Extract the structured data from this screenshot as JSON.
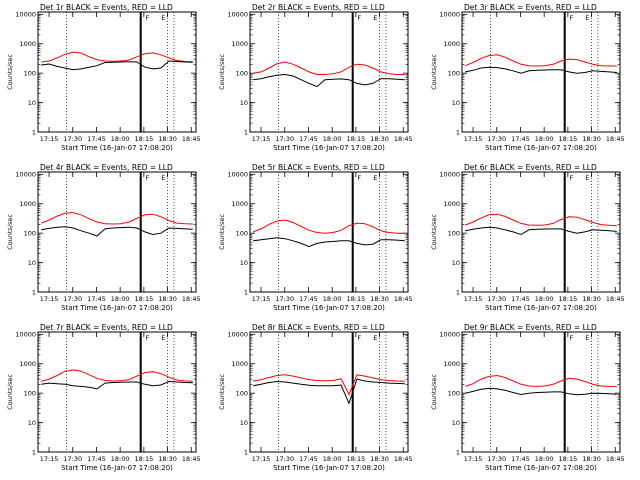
{
  "colors": {
    "events": "#000000",
    "lld": "#ff0000",
    "background": "#ffffff"
  },
  "chart_data": [
    {
      "type": "line",
      "title": "Det 1r BLACK = Events, RED = LLD",
      "xlabel": "Start Time (16-Jan-07 17:08:20)",
      "ylabel": "Counts/sec",
      "xticks": [
        "17:15",
        "17:30",
        "17:45",
        "18:00",
        "18:15",
        "18:30",
        "18:45"
      ],
      "yticks": [
        "1",
        "10",
        "100",
        "1000",
        "10000"
      ],
      "yscale": "log",
      "ylim": [
        1,
        12000
      ],
      "markers": [
        "F",
        "E"
      ],
      "series": [
        {
          "name": "LLD",
          "color": "#ff0000",
          "values": [
            240,
            260,
            330,
            440,
            520,
            480,
            360,
            290,
            260,
            255,
            260,
            280,
            360,
            460,
            490,
            420,
            330,
            270,
            250,
            245
          ]
        },
        {
          "name": "Events",
          "color": "#000000",
          "values": [
            190,
            205,
            170,
            150,
            130,
            140,
            160,
            180,
            230,
            235,
            240,
            245,
            240,
            160,
            140,
            150,
            260,
            250,
            240,
            235
          ]
        }
      ]
    },
    {
      "type": "line",
      "title": "Det 2r BLACK = Events, RED = LLD",
      "xlabel": "Start Time (16-Jan-07 17:08:20)",
      "ylabel": "Counts/sec",
      "xticks": [
        "17:15",
        "17:30",
        "17:45",
        "18:00",
        "18:15",
        "18:30",
        "18:45"
      ],
      "yticks": [
        "1",
        "10",
        "100",
        "1000",
        "10000"
      ],
      "yscale": "log",
      "ylim": [
        1,
        12000
      ],
      "markers": [
        "F",
        "E"
      ],
      "series": [
        {
          "name": "LLD",
          "color": "#ff0000",
          "values": [
            100,
            110,
            150,
            210,
            240,
            200,
            150,
            110,
            90,
            90,
            95,
            110,
            160,
            200,
            190,
            150,
            110,
            95,
            90,
            90
          ]
        },
        {
          "name": "Events",
          "color": "#000000",
          "values": [
            60,
            65,
            75,
            85,
            90,
            80,
            60,
            45,
            35,
            60,
            62,
            64,
            60,
            45,
            40,
            45,
            65,
            65,
            62,
            60
          ]
        }
      ]
    },
    {
      "type": "line",
      "title": "Det 3r BLACK = Events, RED = LLD",
      "xlabel": "Start Time (16-Jan-07 17:08:20)",
      "ylabel": "Counts/sec",
      "xticks": [
        "17:15",
        "17:30",
        "17:45",
        "18:00",
        "18:15",
        "18:30",
        "18:45"
      ],
      "yticks": [
        "1",
        "10",
        "100",
        "1000",
        "10000"
      ],
      "yscale": "log",
      "ylim": [
        1,
        12000
      ],
      "markers": [
        "F",
        "E"
      ],
      "series": [
        {
          "name": "LLD",
          "color": "#ff0000",
          "values": [
            180,
            230,
            320,
            400,
            420,
            350,
            260,
            200,
            180,
            175,
            180,
            200,
            260,
            300,
            290,
            240,
            200,
            180,
            175,
            175
          ]
        },
        {
          "name": "Events",
          "color": "#000000",
          "values": [
            110,
            125,
            150,
            160,
            155,
            140,
            120,
            100,
            120,
            125,
            128,
            130,
            130,
            110,
            100,
            105,
            120,
            115,
            110,
            105
          ]
        }
      ]
    },
    {
      "type": "line",
      "title": "Det 4r BLACK = Events, RED = LLD",
      "xlabel": "Start Time (16-Jan-07 17:08:20)",
      "ylabel": "Counts/sec",
      "xticks": [
        "17:15",
        "17:30",
        "17:45",
        "18:00",
        "18:15",
        "18:30",
        "18:45"
      ],
      "yticks": [
        "1",
        "10",
        "100",
        "1000",
        "10000"
      ],
      "yscale": "log",
      "ylim": [
        1,
        12000
      ],
      "markers": [
        "F",
        "E"
      ],
      "series": [
        {
          "name": "LLD",
          "color": "#ff0000",
          "values": [
            220,
            280,
            380,
            480,
            500,
            420,
            310,
            240,
            210,
            205,
            210,
            240,
            320,
            420,
            440,
            360,
            270,
            220,
            210,
            205
          ]
        },
        {
          "name": "Events",
          "color": "#000000",
          "values": [
            130,
            145,
            160,
            165,
            150,
            120,
            100,
            80,
            140,
            150,
            155,
            160,
            150,
            110,
            90,
            100,
            150,
            145,
            140,
            135
          ]
        }
      ]
    },
    {
      "type": "line",
      "title": "Det 5r BLACK = Events, RED = LLD",
      "xlabel": "Start Time (16-Jan-07 17:08:20)",
      "ylabel": "Counts/sec",
      "xticks": [
        "17:15",
        "17:30",
        "17:45",
        "18:00",
        "18:15",
        "18:30",
        "18:45"
      ],
      "yticks": [
        "1",
        "10",
        "100",
        "1000",
        "10000"
      ],
      "yscale": "log",
      "ylim": [
        1,
        12000
      ],
      "markers": [
        "F",
        "E"
      ],
      "series": [
        {
          "name": "LLD",
          "color": "#ff0000",
          "values": [
            110,
            140,
            200,
            260,
            280,
            230,
            170,
            125,
            105,
            100,
            105,
            125,
            180,
            220,
            210,
            165,
            120,
            105,
            100,
            100
          ]
        },
        {
          "name": "Events",
          "color": "#000000",
          "values": [
            55,
            60,
            65,
            70,
            65,
            55,
            45,
            35,
            45,
            50,
            52,
            55,
            55,
            45,
            40,
            42,
            60,
            60,
            58,
            55
          ]
        }
      ]
    },
    {
      "type": "line",
      "title": "Det 6r BLACK = Events, RED = LLD",
      "xlabel": "Start Time (16-Jan-07 17:08:20)",
      "ylabel": "Counts/sec",
      "xticks": [
        "17:15",
        "17:30",
        "17:45",
        "18:00",
        "18:15",
        "18:30",
        "18:45"
      ],
      "yticks": [
        "1",
        "10",
        "100",
        "1000",
        "10000"
      ],
      "yscale": "log",
      "ylim": [
        1,
        12000
      ],
      "markers": [
        "F",
        "E"
      ],
      "series": [
        {
          "name": "LLD",
          "color": "#ff0000",
          "values": [
            190,
            240,
            330,
            420,
            440,
            370,
            280,
            215,
            190,
            185,
            190,
            215,
            290,
            360,
            350,
            290,
            230,
            195,
            185,
            180
          ]
        },
        {
          "name": "Events",
          "color": "#000000",
          "values": [
            120,
            135,
            150,
            160,
            150,
            130,
            110,
            90,
            130,
            135,
            138,
            140,
            140,
            115,
            100,
            110,
            130,
            125,
            120,
            115
          ]
        }
      ]
    },
    {
      "type": "line",
      "title": "Det 7r BLACK = Events, RED = LLD",
      "xlabel": "Start Time (16-Jan-07 17:08:20)",
      "ylabel": "Counts/sec",
      "xticks": [
        "17:15",
        "17:30",
        "17:45",
        "18:00",
        "18:15",
        "18:30",
        "18:45"
      ],
      "yticks": [
        "1",
        "10",
        "100",
        "1000",
        "10000"
      ],
      "yscale": "log",
      "ylim": [
        1,
        12000
      ],
      "markers": [
        "F",
        "E"
      ],
      "series": [
        {
          "name": "LLD",
          "color": "#ff0000",
          "values": [
            250,
            300,
            400,
            560,
            620,
            560,
            420,
            320,
            270,
            260,
            265,
            290,
            380,
            500,
            540,
            460,
            350,
            280,
            260,
            255
          ]
        },
        {
          "name": "Events",
          "color": "#000000",
          "values": [
            200,
            220,
            210,
            200,
            180,
            170,
            160,
            140,
            220,
            230,
            235,
            240,
            240,
            200,
            180,
            190,
            250,
            240,
            230,
            225
          ]
        }
      ]
    },
    {
      "type": "line",
      "title": "Det 8r BLACK = Events, RED = LLD",
      "xlabel": "Start Time (16-Jan-07 17:08:20)",
      "ylabel": "Counts/sec",
      "xticks": [
        "17:15",
        "17:30",
        "17:45",
        "18:00",
        "18:15",
        "18:30",
        "18:45"
      ],
      "yticks": [
        "1",
        "10",
        "100",
        "1000",
        "10000"
      ],
      "yscale": "log",
      "ylim": [
        1,
        12000
      ],
      "markers": [
        "F",
        "E"
      ],
      "series": [
        {
          "name": "LLD",
          "color": "#ff0000",
          "values": [
            260,
            290,
            340,
            400,
            420,
            380,
            330,
            290,
            270,
            265,
            270,
            310,
            90,
            420,
            380,
            330,
            290,
            270,
            260,
            255
          ]
        },
        {
          "name": "Events",
          "color": "#000000",
          "values": [
            180,
            200,
            230,
            250,
            240,
            220,
            200,
            185,
            180,
            178,
            180,
            190,
            45,
            300,
            260,
            240,
            230,
            220,
            215,
            210
          ]
        }
      ]
    },
    {
      "type": "line",
      "title": "Det 9r BLACK = Events, RED = LLD",
      "xlabel": "Start Time (16-Jan-07 17:08:20)",
      "ylabel": "Counts/sec",
      "xticks": [
        "17:15",
        "17:30",
        "17:45",
        "18:00",
        "18:15",
        "18:30",
        "18:45"
      ],
      "yticks": [
        "1",
        "10",
        "100",
        "1000",
        "10000"
      ],
      "yscale": "log",
      "ylim": [
        1,
        12000
      ],
      "markers": [
        "F",
        "E"
      ],
      "series": [
        {
          "name": "LLD",
          "color": "#ff0000",
          "values": [
            170,
            210,
            300,
            370,
            400,
            340,
            260,
            200,
            175,
            170,
            175,
            200,
            260,
            320,
            300,
            250,
            200,
            175,
            170,
            170
          ]
        },
        {
          "name": "Events",
          "color": "#000000",
          "values": [
            100,
            115,
            135,
            145,
            140,
            125,
            105,
            90,
            100,
            105,
            108,
            110,
            110,
            95,
            88,
            92,
            100,
            98,
            95,
            92
          ]
        }
      ]
    }
  ]
}
